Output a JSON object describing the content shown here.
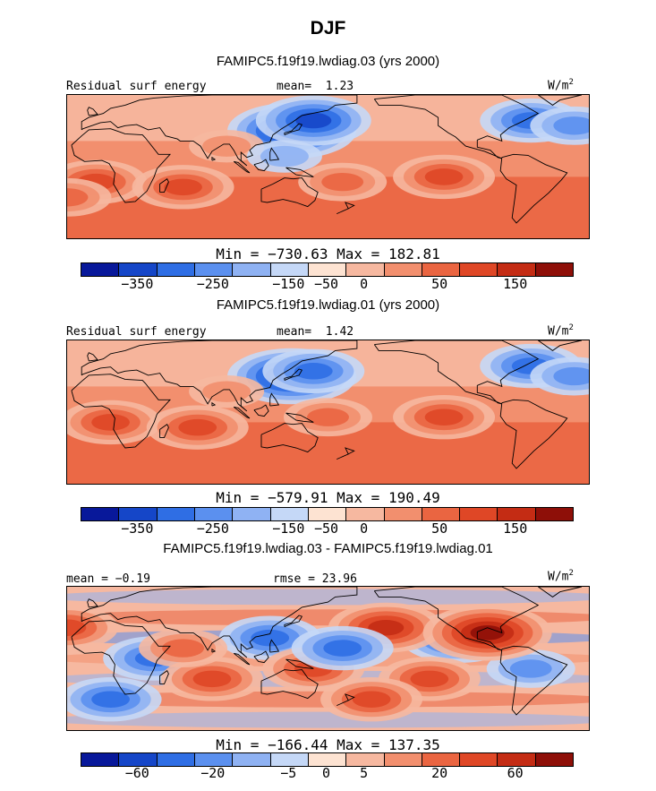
{
  "title": "DJF",
  "colors": {
    "abs_scale": [
      "#08189a",
      "#1546c8",
      "#2f6ee4",
      "#5b90ef",
      "#8fb2f3",
      "#c5d8f7",
      "#fde3d2",
      "#f6b8a0",
      "#f28f6e",
      "#ea6541",
      "#df4726",
      "#c42c14",
      "#8e0f08"
    ],
    "diff_scale": [
      "#08189a",
      "#1546c8",
      "#2f6ee4",
      "#5b90ef",
      "#8fb2f3",
      "#c5d8f7",
      "#fde3d2",
      "#f6b8a0",
      "#f28f6e",
      "#ea6541",
      "#df4726",
      "#c42c14",
      "#8e0f08"
    ],
    "land_outline": "#000000"
  },
  "chart_data": [
    {
      "type": "heatmap",
      "subtitle": "FAMIPC5.f19f19.lwdiag.03 (yrs 2000)",
      "field_label": "Residual surf energy",
      "mean_label": "mean=",
      "mean_value": "1.23",
      "units": "W/m",
      "units_exp": "2",
      "min_label": "Min = ",
      "min_value": "−730.63",
      "max_label": " Max = ",
      "max_value": "182.81",
      "colorbar_ticks": [
        "−350",
        "−250",
        "−150",
        "−50",
        "0",
        "50",
        "150"
      ],
      "dominant": "warm",
      "blobs": [
        {
          "lon": 135,
          "lat": 35,
          "v": -6
        },
        {
          "lon": 150,
          "lat": 45,
          "v": -5
        },
        {
          "lon": -60,
          "lat": 45,
          "v": -4
        },
        {
          "lon": -30,
          "lat": 40,
          "v": -3
        },
        {
          "lon": 90,
          "lat": 20,
          "v": 2
        },
        {
          "lon": 0,
          "lat": -15,
          "v": 4
        },
        {
          "lon": 60,
          "lat": -20,
          "v": 4
        },
        {
          "lon": -120,
          "lat": -10,
          "v": 4
        },
        {
          "lon": 170,
          "lat": -15,
          "v": 3
        },
        {
          "lon": -20,
          "lat": -30,
          "v": 3
        },
        {
          "lon": 130,
          "lat": 10,
          "v": -2
        }
      ]
    },
    {
      "type": "heatmap",
      "subtitle": "FAMIPC5.f19f19.lwdiag.01 (yrs 2000)",
      "field_label": "Residual surf energy",
      "mean_label": "mean=",
      "mean_value": "1.42",
      "units": "W/m",
      "units_exp": "2",
      "min_label": "Min = ",
      "min_value": "−579.91",
      "max_label": " Max = ",
      "max_value": "190.49",
      "colorbar_ticks": [
        "−350",
        "−250",
        "−150",
        "−50",
        "0",
        "50",
        "150"
      ],
      "dominant": "warm",
      "blobs": [
        {
          "lon": 135,
          "lat": 35,
          "v": -6
        },
        {
          "lon": 150,
          "lat": 40,
          "v": -4
        },
        {
          "lon": -60,
          "lat": 45,
          "v": -4
        },
        {
          "lon": -30,
          "lat": 35,
          "v": -3
        },
        {
          "lon": 10,
          "lat": -10,
          "v": 4
        },
        {
          "lon": 70,
          "lat": -15,
          "v": 4
        },
        {
          "lon": -120,
          "lat": -5,
          "v": 4
        },
        {
          "lon": 160,
          "lat": -5,
          "v": 3
        },
        {
          "lon": 90,
          "lat": 20,
          "v": 2
        }
      ]
    },
    {
      "type": "heatmap",
      "subtitle": "FAMIPC5.f19f19.lwdiag.03 - FAMIPC5.f19f19.lwdiag.01",
      "mean_label": "mean = ",
      "mean_value": "−0.19",
      "rmse_label": "rmse = ",
      "rmse_value": "23.96",
      "units": "W/m",
      "units_exp": "2",
      "min_label": "Min = ",
      "min_value": "−166.44",
      "max_label": " Max = ",
      "max_value": "137.35",
      "colorbar_ticks": [
        "−60",
        "−20",
        "−5",
        "0",
        "5",
        "20",
        "60"
      ],
      "dominant": "mixed",
      "blobs": [
        {
          "lon": -110,
          "lat": 20,
          "v": -5
        },
        {
          "lon": -130,
          "lat": -20,
          "v": 4
        },
        {
          "lon": -160,
          "lat": 30,
          "v": 5
        },
        {
          "lon": 40,
          "lat": 0,
          "v": -4
        },
        {
          "lon": 80,
          "lat": -20,
          "v": 4
        },
        {
          "lon": 120,
          "lat": 20,
          "v": -4
        },
        {
          "lon": 150,
          "lat": -10,
          "v": 4
        },
        {
          "lon": -20,
          "lat": 30,
          "v": 4
        },
        {
          "lon": 10,
          "lat": -40,
          "v": -4
        },
        {
          "lon": -60,
          "lat": -10,
          "v": -3
        },
        {
          "lon": -90,
          "lat": 25,
          "v": 6
        },
        {
          "lon": 170,
          "lat": 10,
          "v": -4
        },
        {
          "lon": -170,
          "lat": -40,
          "v": 4
        },
        {
          "lon": 60,
          "lat": 10,
          "v": 3
        }
      ]
    }
  ]
}
